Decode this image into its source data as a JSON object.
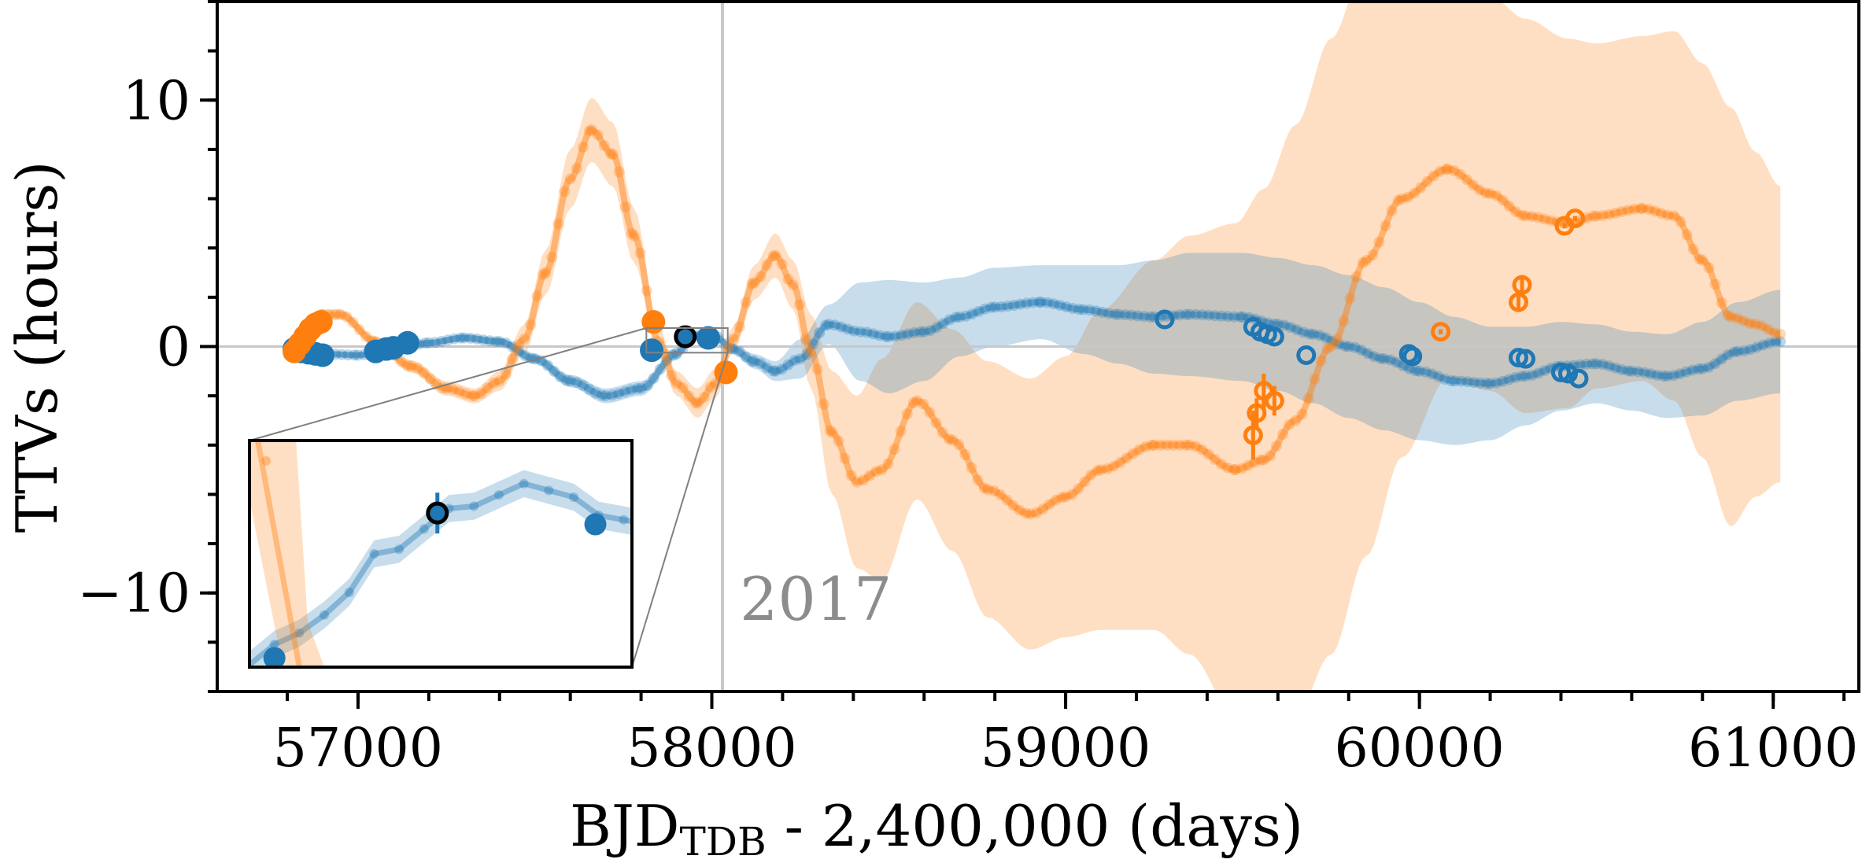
{
  "chart_data": {
    "type": "line",
    "title": "",
    "xlabel": "BJD",
    "xlabel_subscript": "TDB",
    "xlabel_suffix": " - 2,400,000 (days)",
    "ylabel": "TTVs (hours)",
    "xlim": [
      56602,
      61242
    ],
    "ylim": [
      -14,
      14
    ],
    "xticks": [
      57000,
      58000,
      59000,
      60000,
      61000
    ],
    "xtick_labels": [
      "57000",
      "58000",
      "59000",
      "60000",
      "61000"
    ],
    "x_minor_step": 200,
    "yticks": [
      10,
      0,
      -10
    ],
    "ytick_labels": [
      "10",
      "0",
      "−10"
    ],
    "y_minor_step": 2,
    "grid": false,
    "zero_line": 0,
    "annotation": {
      "label": "2017",
      "x": 58030
    },
    "colors": {
      "planet_b": "#1f77b4",
      "planet_c": "#ff7f0e",
      "band_b": "#c6dbec",
      "band_c": "#fdddc3",
      "ref_line": "#c8c8c8"
    },
    "series": [
      {
        "name": "planet-b-model",
        "color": "#1f77b4",
        "x": [
          56820,
          56900,
          57000,
          57100,
          57200,
          57300,
          57400,
          57500,
          57600,
          57700,
          57800,
          57900,
          57950,
          58000,
          58060,
          58120,
          58180,
          58250,
          58330,
          58420,
          58500,
          58600,
          58700,
          58800,
          58930,
          59050,
          59150,
          59250,
          59350,
          59500,
          59600,
          59700,
          59800,
          59900,
          60000,
          60100,
          60200,
          60300,
          60400,
          60500,
          60600,
          60700,
          60800,
          60900,
          61020
        ],
        "y": [
          -0.2,
          -0.3,
          -0.35,
          -0.15,
          0.15,
          0.35,
          0.2,
          -0.5,
          -1.4,
          -2.0,
          -1.7,
          -0.3,
          0.45,
          0.5,
          -0.1,
          -0.6,
          -1.0,
          -0.5,
          0.9,
          0.6,
          0.4,
          0.6,
          1.2,
          1.6,
          1.8,
          1.5,
          1.3,
          1.2,
          1.3,
          1.2,
          0.9,
          0.5,
          0.0,
          -0.5,
          -1.0,
          -1.4,
          -1.5,
          -1.2,
          -0.8,
          -0.7,
          -1.0,
          -1.2,
          -0.9,
          -0.2,
          0.2
        ],
        "band_halfwidth": [
          0.1,
          0.1,
          0.1,
          0.1,
          0.1,
          0.15,
          0.15,
          0.2,
          0.25,
          0.3,
          0.3,
          0.25,
          0.15,
          0.1,
          0.2,
          0.3,
          0.4,
          0.8,
          0.8,
          2.0,
          2.3,
          2.0,
          1.6,
          1.6,
          1.5,
          1.8,
          2.0,
          2.3,
          2.5,
          2.6,
          2.7,
          2.8,
          2.9,
          2.9,
          2.8,
          2.6,
          2.3,
          2.0,
          1.8,
          1.6,
          1.6,
          1.7,
          1.9,
          2.0,
          2.1
        ]
      },
      {
        "name": "planet-c-model",
        "color": "#ff7f0e",
        "x": [
          56820,
          56860,
          56900,
          56950,
          57050,
          57150,
          57250,
          57330,
          57400,
          57470,
          57530,
          57600,
          57660,
          57720,
          57780,
          57850,
          57900,
          57960,
          58010,
          58060,
          58120,
          58180,
          58230,
          58280,
          58340,
          58410,
          58480,
          58580,
          58680,
          58780,
          58900,
          59000,
          59100,
          59250,
          59350,
          59480,
          59560,
          59650,
          59750,
          59850,
          59950,
          60080,
          60200,
          60300,
          60420,
          60500,
          60630,
          60720,
          60800,
          60880,
          60950,
          61020
        ],
        "y": [
          -0.3,
          0.9,
          1.3,
          1.3,
          0.2,
          -0.8,
          -1.7,
          -2.0,
          -1.4,
          0.3,
          3.0,
          6.8,
          8.8,
          7.8,
          4.5,
          0.2,
          -1.5,
          -2.3,
          -1.5,
          0.3,
          2.6,
          3.7,
          2.5,
          -0.2,
          -3.5,
          -5.5,
          -5.0,
          -2.2,
          -3.8,
          -5.8,
          -6.8,
          -6.1,
          -5.0,
          -4.0,
          -4.0,
          -5.0,
          -4.6,
          -3.0,
          0.0,
          3.5,
          6.0,
          7.2,
          6.2,
          5.3,
          5.0,
          5.3,
          5.6,
          5.3,
          3.5,
          1.2,
          0.9,
          0.5
        ],
        "band_halfwidth": [
          0.2,
          0.2,
          0.2,
          0.2,
          0.2,
          0.25,
          0.3,
          0.3,
          0.4,
          0.6,
          0.9,
          1.2,
          1.3,
          1.3,
          1.1,
          0.6,
          0.5,
          0.6,
          0.6,
          0.5,
          0.7,
          0.9,
          1.0,
          1.5,
          2.5,
          3.5,
          4.5,
          4.0,
          4.5,
          5.2,
          5.5,
          5.7,
          6.5,
          7.5,
          8.5,
          10.0,
          11.0,
          12.0,
          12.5,
          12.0,
          10.5,
          8.5,
          8.0,
          8.0,
          7.5,
          7.0,
          7.0,
          7.5,
          8.0,
          8.5,
          7.0,
          6.0
        ]
      }
    ],
    "observed_points": {
      "planet_b_filled": [
        {
          "x": 56820,
          "y": -0.1
        },
        {
          "x": 56840,
          "y": -0.2
        },
        {
          "x": 56860,
          "y": -0.25
        },
        {
          "x": 56880,
          "y": -0.3
        },
        {
          "x": 56900,
          "y": -0.35
        },
        {
          "x": 57050,
          "y": -0.2
        },
        {
          "x": 57080,
          "y": -0.1
        },
        {
          "x": 57100,
          "y": -0.05
        },
        {
          "x": 57140,
          "y": 0.15
        },
        {
          "x": 57830,
          "y": -0.15
        },
        {
          "x": 57990,
          "y": 0.35
        }
      ],
      "planet_b_highlight": [
        {
          "x": 57925,
          "y": 0.4
        }
      ],
      "planet_c_filled": [
        {
          "x": 56820,
          "y": -0.2
        },
        {
          "x": 56835,
          "y": 0.1
        },
        {
          "x": 56850,
          "y": 0.4
        },
        {
          "x": 56865,
          "y": 0.7
        },
        {
          "x": 56880,
          "y": 0.9
        },
        {
          "x": 56895,
          "y": 1.0
        },
        {
          "x": 57835,
          "y": 1.0
        },
        {
          "x": 58040,
          "y": -1.05
        }
      ],
      "planet_b_open": [
        {
          "x": 59280,
          "y": 1.1
        },
        {
          "x": 59530,
          "y": 0.8
        },
        {
          "x": 59550,
          "y": 0.6
        },
        {
          "x": 59570,
          "y": 0.5
        },
        {
          "x": 59590,
          "y": 0.4
        },
        {
          "x": 59680,
          "y": -0.35
        },
        {
          "x": 59970,
          "y": -0.3
        },
        {
          "x": 59980,
          "y": -0.4
        },
        {
          "x": 60280,
          "y": -0.45
        },
        {
          "x": 60300,
          "y": -0.5
        },
        {
          "x": 60400,
          "y": -1.05
        },
        {
          "x": 60420,
          "y": -1.1
        },
        {
          "x": 60450,
          "y": -1.3
        }
      ],
      "planet_c_open": [
        {
          "x": 59530,
          "y": -3.6,
          "err": 1.0
        },
        {
          "x": 59540,
          "y": -2.7,
          "err": 0.6
        },
        {
          "x": 59560,
          "y": -1.8,
          "err": 0.7
        },
        {
          "x": 59590,
          "y": -2.2,
          "err": 0.6
        },
        {
          "x": 60060,
          "y": 0.6,
          "err": 0.1
        },
        {
          "x": 60280,
          "y": 1.8,
          "err": 0.4
        },
        {
          "x": 60290,
          "y": 2.5,
          "err": 0.4
        },
        {
          "x": 60410,
          "y": 4.9,
          "err": 0.1
        },
        {
          "x": 60440,
          "y": 5.2,
          "err": 0.1
        }
      ]
    },
    "inset": {
      "xlim": [
        57815,
        58045
      ],
      "ylim": [
        -0.25,
        0.75
      ],
      "source_box": {
        "x0": 57815,
        "x1": 58045,
        "y0": -0.25,
        "y1": 0.75
      }
    }
  }
}
